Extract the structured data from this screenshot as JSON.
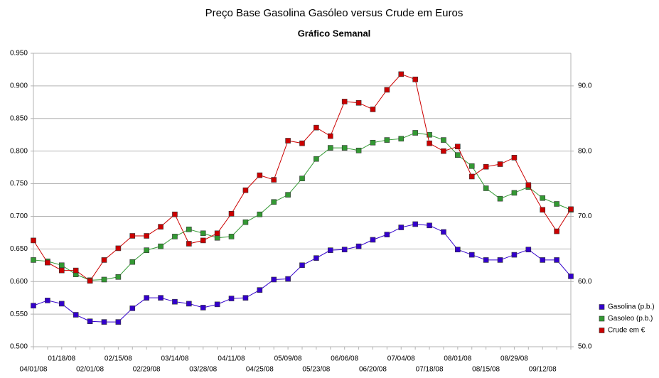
{
  "chart_data": {
    "type": "line",
    "title": "Preço Base Gasolina Gasóleo versus Crude em Euros",
    "subtitle": "Gráfico Semanal",
    "categories": [
      "04/01/08",
      null,
      "01/18/08",
      null,
      "02/01/08",
      null,
      "02/15/08",
      null,
      "02/29/08",
      null,
      "03/14/08",
      null,
      "03/28/08",
      null,
      "04/11/08",
      null,
      "04/25/08",
      null,
      "05/09/08",
      null,
      "05/23/08",
      null,
      "06/06/08",
      null,
      "06/20/08",
      null,
      "07/04/08",
      null,
      "07/18/08",
      null,
      "08/01/08",
      null,
      "08/15/08",
      null,
      "08/29/08",
      null,
      "09/12/08",
      null,
      null
    ],
    "series": [
      {
        "name": "Gasolina (p.b.)",
        "color": "#3300cc",
        "values": [
          0.563,
          0.571,
          0.566,
          0.549,
          0.539,
          0.538,
          0.538,
          0.559,
          0.575,
          0.575,
          0.569,
          0.566,
          0.56,
          0.565,
          0.574,
          0.575,
          0.587,
          0.603,
          0.604,
          0.625,
          0.636,
          0.648,
          0.649,
          0.654,
          0.664,
          0.672,
          0.683,
          0.688,
          0.686,
          0.676,
          0.649,
          0.641,
          0.633,
          0.633,
          0.641,
          0.649,
          0.633,
          0.633,
          0.608
        ]
      },
      {
        "name": "Gasoleo (p.b.)",
        "color": "#339933",
        "values": [
          0.633,
          0.631,
          0.625,
          0.611,
          0.602,
          0.603,
          0.607,
          0.63,
          0.648,
          0.654,
          0.669,
          0.68,
          0.674,
          0.667,
          0.669,
          0.691,
          0.703,
          0.722,
          0.733,
          0.758,
          0.788,
          0.805,
          0.805,
          0.801,
          0.813,
          0.817,
          0.819,
          0.828,
          0.825,
          0.817,
          0.794,
          0.777,
          0.743,
          0.727,
          0.736,
          0.745,
          0.728,
          0.719,
          0.71
        ]
      },
      {
        "name": "Crude em €",
        "color": "#cc0000",
        "axis": "y2",
        "values": [
          66.3,
          62.9,
          61.7,
          61.7,
          60.1,
          63.3,
          65.1,
          67.0,
          67.0,
          68.4,
          70.3,
          65.8,
          66.3,
          67.4,
          70.4,
          74.0,
          76.3,
          75.6,
          81.6,
          81.2,
          83.6,
          82.3,
          87.6,
          87.4,
          86.4,
          89.4,
          91.8,
          91.0,
          81.2,
          80.0,
          80.7,
          76.1,
          77.6,
          78.0,
          79.0,
          74.8,
          71.0,
          67.7,
          71.1
        ]
      }
    ],
    "ylim": [
      0.5,
      0.95
    ],
    "yticks": [
      {
        "value": 0.5,
        "label": "0.500"
      },
      {
        "value": 0.55,
        "label": "0.550"
      },
      {
        "value": 0.6,
        "label": "0.600"
      },
      {
        "value": 0.65,
        "label": "0.650"
      },
      {
        "value": 0.7,
        "label": "0.700"
      },
      {
        "value": 0.75,
        "label": "0.750"
      },
      {
        "value": 0.8,
        "label": "0.800"
      },
      {
        "value": 0.85,
        "label": "0.850"
      },
      {
        "value": 0.9,
        "label": "0.900"
      },
      {
        "value": 0.95,
        "label": "0.950"
      }
    ],
    "y2lim": [
      50,
      95
    ],
    "y2ticks": [
      {
        "value": 50,
        "label": "50.0"
      },
      {
        "value": 60,
        "label": "60.0"
      },
      {
        "value": 70,
        "label": "70.0"
      },
      {
        "value": 80,
        "label": "80.0"
      },
      {
        "value": 90,
        "label": "90.0"
      }
    ],
    "grid": true,
    "legend": "right"
  }
}
